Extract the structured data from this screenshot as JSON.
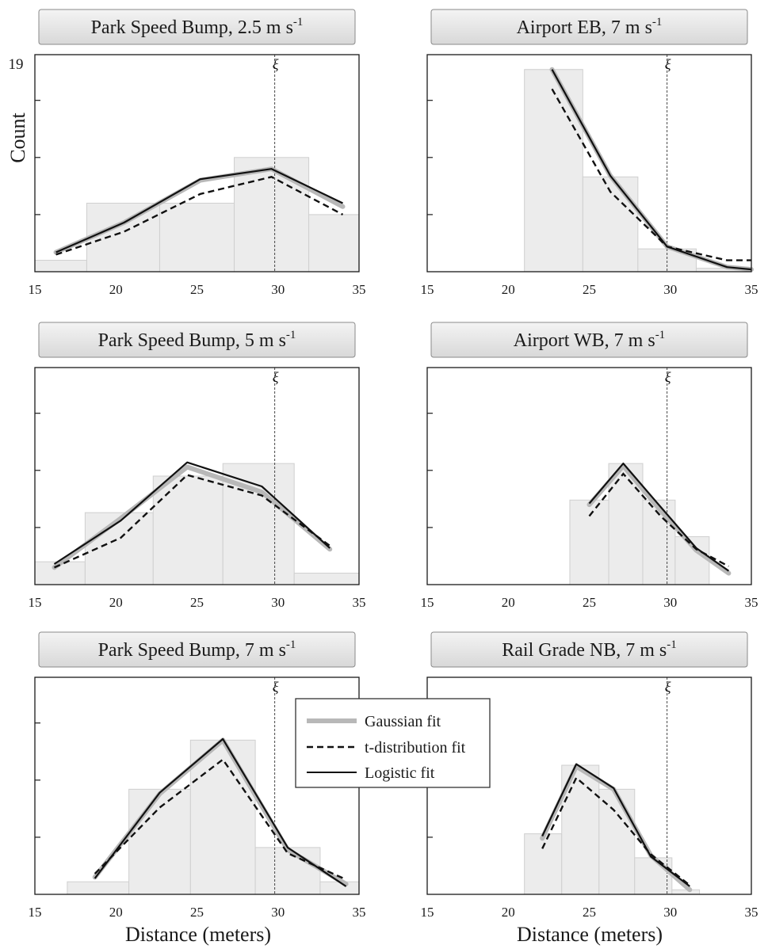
{
  "figure": {
    "ylabel": "Count",
    "ymax_label": "19",
    "xlabel": "Distance (meters)",
    "xi_symbol": "ξ"
  },
  "legend": {
    "entries": [
      {
        "label": "Gaussian fit",
        "style": "gaussian",
        "color": "#b8b8b8"
      },
      {
        "label": "t-distribution fit",
        "style": "t",
        "color": "#111111"
      },
      {
        "label": "Logistic fit",
        "style": "logistic",
        "color": "#111111"
      }
    ]
  },
  "colors": {
    "bar_fill": "#ececec",
    "bar_edge": "#cfcfcf",
    "title_box_top": "#f2f2f2",
    "title_box_bottom": "#dcdcdc"
  },
  "chart_data": [
    {
      "type": "bar",
      "title": "Park Speed Bump, 2.5 m s",
      "title_sup": "-1",
      "xlim": [
        15,
        35
      ],
      "ylim": [
        0,
        19
      ],
      "xticks": [
        15,
        20,
        25,
        30,
        35
      ],
      "xi": 29.8,
      "bins": [
        [
          15,
          18.2,
          1
        ],
        [
          18.2,
          22.7,
          6
        ],
        [
          22.7,
          27.3,
          6
        ],
        [
          27.3,
          31.9,
          10
        ],
        [
          31.9,
          35,
          5
        ]
      ],
      "series": [
        {
          "name": "Gaussian fit",
          "x": [
            16.3,
            20.5,
            25.2,
            29.6,
            34
          ],
          "y": [
            1.7,
            4.3,
            8,
            9,
            5.7
          ]
        },
        {
          "name": "t-distribution fit",
          "x": [
            16.3,
            20.5,
            25.2,
            29.6,
            34
          ],
          "y": [
            1.5,
            3.5,
            6.8,
            8.3,
            5
          ]
        },
        {
          "name": "Logistic fit",
          "x": [
            16.3,
            20.5,
            25.2,
            29.6,
            34
          ],
          "y": [
            1.7,
            4.3,
            8.1,
            9,
            6
          ]
        }
      ]
    },
    {
      "type": "bar",
      "title": "Airport EB, 7 m s",
      "title_sup": "-1",
      "xlim": [
        15,
        35
      ],
      "ylim": [
        0,
        19
      ],
      "xticks": [
        15,
        20,
        25,
        30,
        35
      ],
      "xi": 29.8,
      "bins": [
        [
          21,
          24.6,
          17.7
        ],
        [
          24.6,
          28,
          8.3
        ],
        [
          28,
          31.6,
          2
        ],
        [
          31.6,
          35,
          0.3
        ]
      ],
      "series": [
        {
          "name": "Gaussian fit",
          "x": [
            22.7,
            26.3,
            29.8,
            33.5,
            35
          ],
          "y": [
            17.7,
            8.4,
            2.2,
            0.4,
            0.2
          ]
        },
        {
          "name": "t-distribution fit",
          "x": [
            22.7,
            26.3,
            29.8,
            33.5,
            35
          ],
          "y": [
            16,
            7,
            2.2,
            1,
            1
          ]
        },
        {
          "name": "Logistic fit",
          "x": [
            22.7,
            26.3,
            29.8,
            33.5,
            35
          ],
          "y": [
            17.7,
            8.4,
            2.2,
            0.4,
            0.2
          ]
        }
      ]
    },
    {
      "type": "bar",
      "title": "Park Speed Bump, 5 m s",
      "title_sup": "-1",
      "xlim": [
        15,
        35
      ],
      "ylim": [
        0,
        19
      ],
      "xticks": [
        15,
        20,
        25,
        30,
        35
      ],
      "xi": 29.8,
      "bins": [
        [
          15,
          18.1,
          2
        ],
        [
          18.1,
          22.3,
          6.3
        ],
        [
          22.3,
          26.6,
          9.5
        ],
        [
          26.6,
          31,
          10.6
        ],
        [
          31,
          35,
          1
        ]
      ],
      "series": [
        {
          "name": "Gaussian fit",
          "x": [
            16.2,
            20.3,
            24.4,
            29,
            33.2
          ],
          "y": [
            1.5,
            5.8,
            10.3,
            8.1,
            3.1
          ]
        },
        {
          "name": "t-distribution fit",
          "x": [
            16.2,
            20.3,
            24.4,
            29,
            33.2
          ],
          "y": [
            1.5,
            4.1,
            9.6,
            7.8,
            3.4
          ]
        },
        {
          "name": "Logistic fit",
          "x": [
            16.2,
            20.3,
            24.4,
            29,
            33.2
          ],
          "y": [
            1.8,
            5.6,
            10.7,
            8.6,
            3.2
          ]
        }
      ]
    },
    {
      "type": "bar",
      "title": "Airport WB, 7 m s",
      "title_sup": "-1",
      "xlim": [
        15,
        35
      ],
      "ylim": [
        0,
        19
      ],
      "xticks": [
        15,
        20,
        25,
        30,
        35
      ],
      "xi": 29.8,
      "bins": [
        [
          23.8,
          26.2,
          7.4
        ],
        [
          26.2,
          28.3,
          10.6
        ],
        [
          28.3,
          30.3,
          7.4
        ],
        [
          30.3,
          32.4,
          4.2
        ]
      ],
      "series": [
        {
          "name": "Gaussian fit",
          "x": [
            25,
            27.1,
            29.4,
            31.6,
            33.6
          ],
          "y": [
            7,
            10.4,
            6.5,
            3,
            1
          ]
        },
        {
          "name": "t-distribution fit",
          "x": [
            25,
            27.1,
            29.4,
            31.6,
            33.6
          ],
          "y": [
            6,
            9.7,
            6,
            3.1,
            1.6
          ]
        },
        {
          "name": "Logistic fit",
          "x": [
            25,
            27.1,
            29.4,
            31.6,
            33.6
          ],
          "y": [
            7.1,
            10.6,
            6.8,
            3.2,
            1.2
          ]
        }
      ]
    },
    {
      "type": "bar",
      "title": "Park Speed Bump, 7 m s",
      "title_sup": "-1",
      "xlim": [
        15,
        35
      ],
      "ylim": [
        0,
        19
      ],
      "xticks": [
        15,
        20,
        25,
        30,
        35
      ],
      "xi": 29.8,
      "bins": [
        [
          17,
          20.8,
          1.1
        ],
        [
          20.8,
          24.6,
          9.2
        ],
        [
          24.6,
          28.6,
          13.5
        ],
        [
          28.6,
          32.6,
          4.1
        ],
        [
          32.6,
          35,
          1.1
        ]
      ],
      "series": [
        {
          "name": "Gaussian fit",
          "x": [
            18.7,
            22.7,
            26.6,
            30.6,
            34.2
          ],
          "y": [
            1.5,
            8.8,
            13.5,
            3.9,
            0.9
          ]
        },
        {
          "name": "t-distribution fit",
          "x": [
            18.7,
            22.7,
            26.6,
            30.6,
            34.2
          ],
          "y": [
            1.8,
            7.6,
            11.8,
            3.6,
            1.3
          ]
        },
        {
          "name": "Logistic fit",
          "x": [
            18.7,
            22.7,
            26.6,
            30.6,
            34.2
          ],
          "y": [
            1.4,
            8.9,
            13.6,
            4.1,
            0.7
          ]
        }
      ]
    },
    {
      "type": "bar",
      "title": "Rail Grade NB, 7 m s",
      "title_sup": "-1",
      "xlim": [
        15,
        35
      ],
      "ylim": [
        0,
        19
      ],
      "xticks": [
        15,
        20,
        25,
        30,
        35
      ],
      "xi": 29.8,
      "bins": [
        [
          21,
          23.3,
          5.3
        ],
        [
          23.3,
          25.6,
          11.3
        ],
        [
          25.6,
          27.8,
          9.2
        ],
        [
          27.8,
          30.1,
          3.2
        ],
        [
          30.1,
          31.8,
          0.4
        ]
      ],
      "series": [
        {
          "name": "Gaussian fit",
          "x": [
            22.1,
            24.2,
            26.5,
            28.8,
            31.2
          ],
          "y": [
            4.9,
            11.2,
            9.2,
            3.4,
            0.4
          ]
        },
        {
          "name": "t-distribution fit",
          "x": [
            22.1,
            24.2,
            26.5,
            28.8,
            31.2
          ],
          "y": [
            4,
            10.2,
            7.4,
            3.5,
            0.8
          ]
        },
        {
          "name": "Logistic fit",
          "x": [
            22.1,
            24.2,
            26.5,
            28.8,
            31.2
          ],
          "y": [
            5.1,
            11.4,
            9.3,
            3.3,
            0.7
          ]
        }
      ]
    }
  ]
}
